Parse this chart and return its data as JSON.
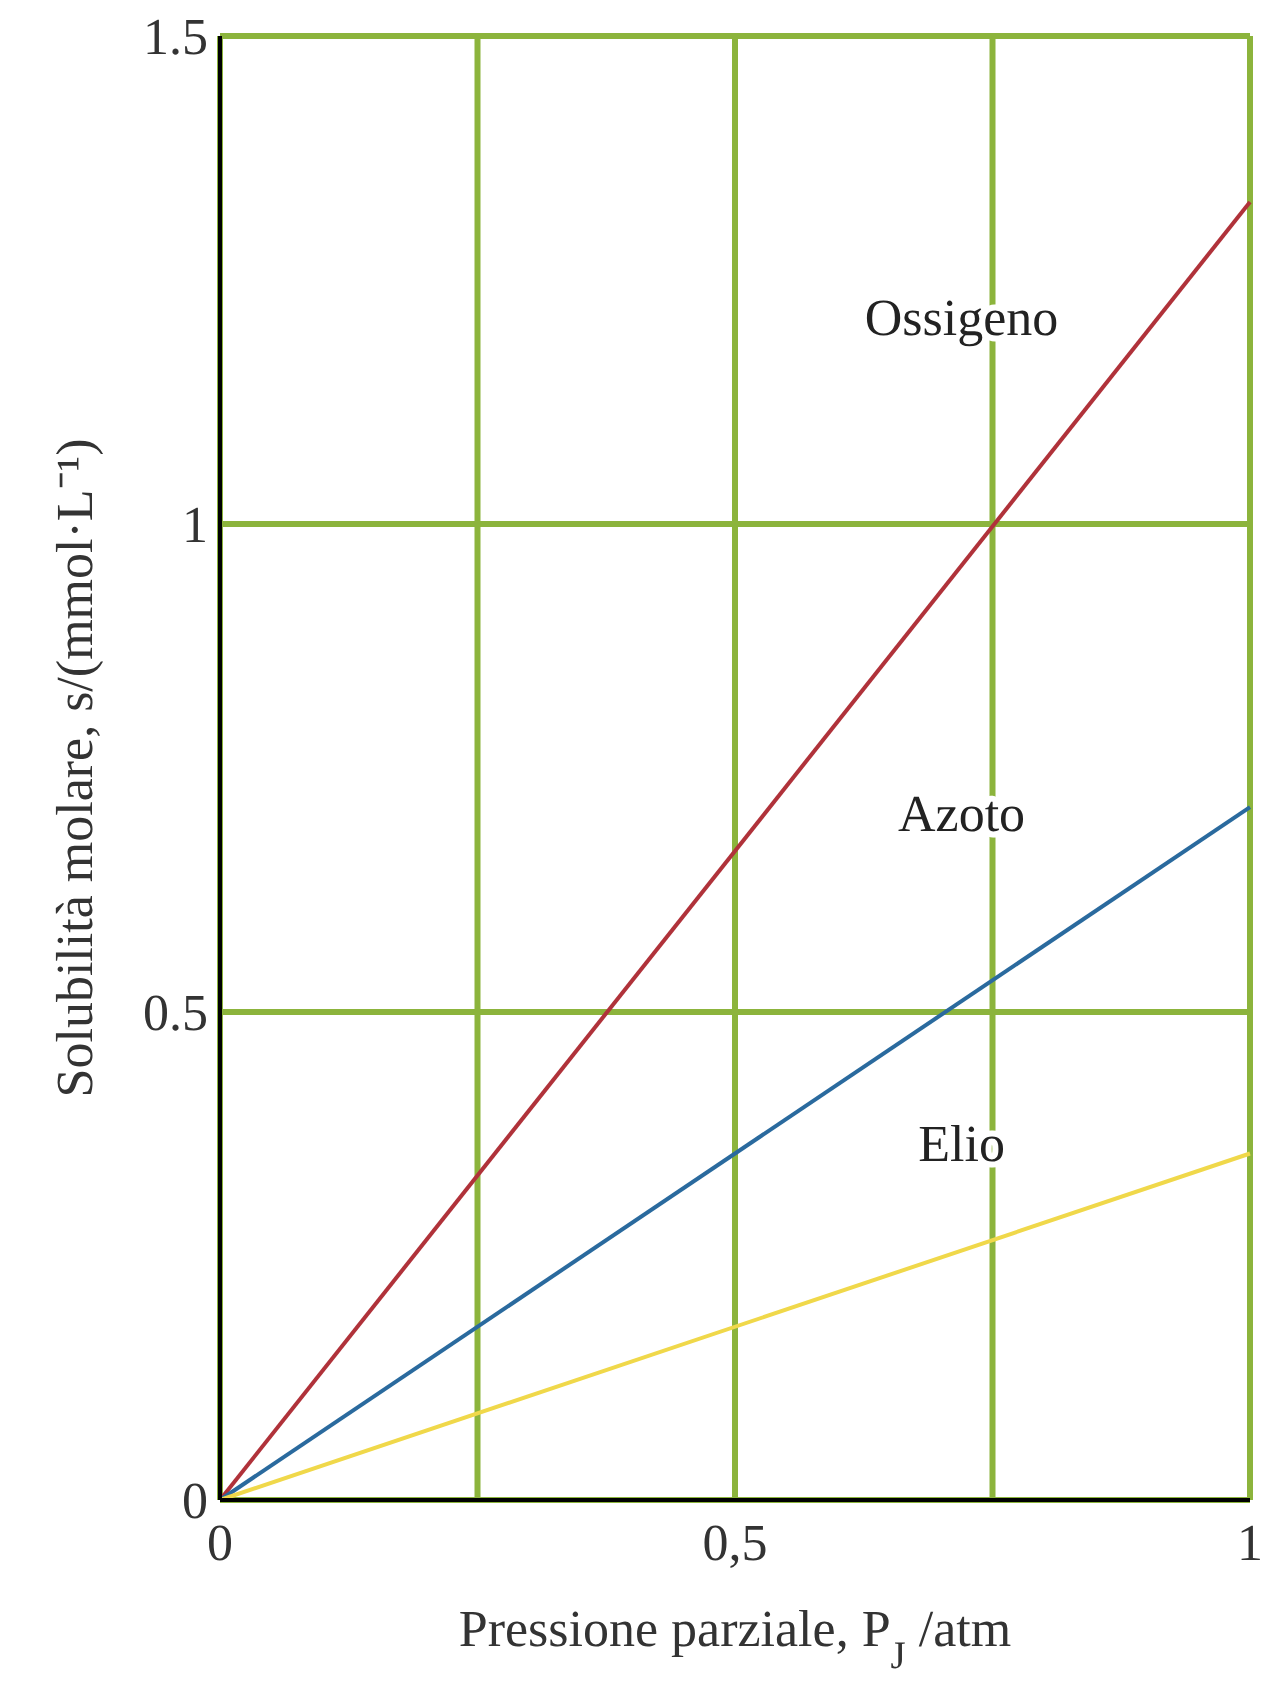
{
  "chart_data": {
    "type": "line",
    "xlabel": "Pressione parziale, P$_{J}$ /atm",
    "ylabel": "Solubilità molare, s/(mmol·L⁻¹)",
    "x": [
      0,
      1
    ],
    "series": [
      {
        "name": "Ossigeno",
        "color": "#b0323a",
        "values": [
          0,
          1.33
        ]
      },
      {
        "name": "Azoto",
        "color": "#2a6a9e",
        "values": [
          0,
          0.71
        ]
      },
      {
        "name": "Elio",
        "color": "#f0d84a",
        "values": [
          0,
          0.355
        ]
      }
    ],
    "xlim": [
      0,
      1
    ],
    "ylim": [
      0,
      1.5
    ],
    "xticks": [
      0,
      {
        "value": 0.25,
        "label": null
      },
      {
        "value": 0.5,
        "label": "0,5"
      },
      {
        "value": 0.75,
        "label": null
      },
      1
    ],
    "yticks": [
      0,
      0.5,
      1,
      1.5
    ],
    "grid": true,
    "marker": "none",
    "line_style": "solid"
  }
}
